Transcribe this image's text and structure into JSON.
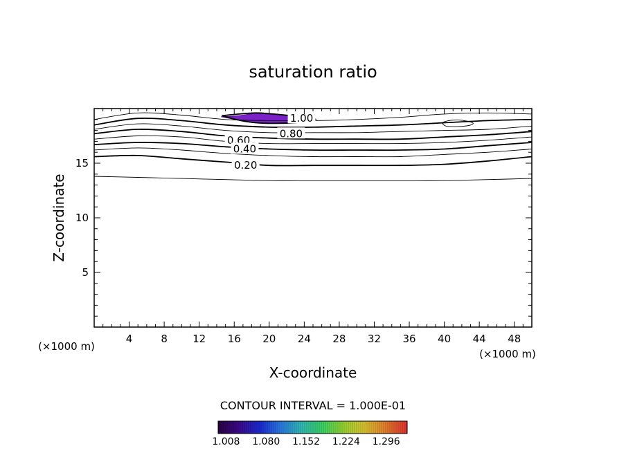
{
  "chart_data": {
    "type": "contour",
    "title": "saturation ratio",
    "xlabel": "X-coordinate",
    "ylabel": "Z-coordinate",
    "x_multiplier": "(×1000 m)",
    "y_multiplier": "(×1000 m)",
    "xlim": [
      0,
      50
    ],
    "ylim": [
      0,
      20
    ],
    "x_ticks": [
      "4",
      "8",
      "12",
      "16",
      "20",
      "24",
      "28",
      "32",
      "36",
      "40",
      "44",
      "48"
    ],
    "y_ticks": [
      "5",
      "10",
      "15"
    ],
    "contour_interval_text": "CONTOUR INTERVAL = 1.000E-01",
    "contour_labels": [
      {
        "text": "1.00",
        "value": 1.0,
        "x": 23.7,
        "y": 19.1
      },
      {
        "text": "0.80",
        "value": 0.8,
        "x": 22.5,
        "y": 17.7
      },
      {
        "text": "0.60",
        "value": 0.6,
        "x": 16.5,
        "y": 17.1
      },
      {
        "text": "0.40",
        "value": 0.4,
        "x": 17.2,
        "y": 16.3
      },
      {
        "text": "0.20",
        "value": 0.2,
        "x": 17.3,
        "y": 14.8
      }
    ],
    "contour_lines": [
      {
        "value": 0.1,
        "points": [
          [
            0,
            13.8
          ],
          [
            5,
            13.7
          ],
          [
            10,
            13.6
          ],
          [
            15,
            13.5
          ],
          [
            20,
            13.4
          ],
          [
            25,
            13.4
          ],
          [
            30,
            13.4
          ],
          [
            35,
            13.4
          ],
          [
            40,
            13.4
          ],
          [
            45,
            13.5
          ],
          [
            50,
            13.6
          ]
        ]
      },
      {
        "value": 0.2,
        "points": [
          [
            0,
            15.6
          ],
          [
            5,
            15.7
          ],
          [
            10,
            15.4
          ],
          [
            15,
            15.1
          ],
          [
            20,
            14.8
          ],
          [
            25,
            14.8
          ],
          [
            30,
            14.8
          ],
          [
            35,
            14.8
          ],
          [
            40,
            14.9
          ],
          [
            45,
            15.2
          ],
          [
            50,
            15.6
          ]
        ]
      },
      {
        "value": 0.3,
        "points": [
          [
            0,
            16.2
          ],
          [
            5,
            16.4
          ],
          [
            10,
            16.2
          ],
          [
            15,
            15.9
          ],
          [
            20,
            15.7
          ],
          [
            25,
            15.6
          ],
          [
            30,
            15.6
          ],
          [
            35,
            15.6
          ],
          [
            40,
            15.8
          ],
          [
            45,
            16.0
          ],
          [
            50,
            16.3
          ]
        ]
      },
      {
        "value": 0.4,
        "points": [
          [
            0,
            16.7
          ],
          [
            5,
            16.9
          ],
          [
            10,
            16.8
          ],
          [
            15,
            16.5
          ],
          [
            20,
            16.3
          ],
          [
            25,
            16.2
          ],
          [
            30,
            16.2
          ],
          [
            35,
            16.2
          ],
          [
            40,
            16.3
          ],
          [
            45,
            16.6
          ],
          [
            50,
            16.9
          ]
        ]
      },
      {
        "value": 0.5,
        "points": [
          [
            0,
            17.2
          ],
          [
            5,
            17.5
          ],
          [
            10,
            17.4
          ],
          [
            15,
            17.0
          ],
          [
            20,
            16.8
          ],
          [
            25,
            16.8
          ],
          [
            30,
            16.8
          ],
          [
            35,
            16.8
          ],
          [
            40,
            16.9
          ],
          [
            45,
            17.1
          ],
          [
            50,
            17.4
          ]
        ]
      },
      {
        "value": 0.6,
        "points": [
          [
            0,
            17.7
          ],
          [
            5,
            18.1
          ],
          [
            10,
            17.9
          ],
          [
            15,
            17.5
          ],
          [
            20,
            17.3
          ],
          [
            25,
            17.2
          ],
          [
            30,
            17.2
          ],
          [
            35,
            17.2
          ],
          [
            40,
            17.4
          ],
          [
            45,
            17.6
          ],
          [
            50,
            17.9
          ]
        ]
      },
      {
        "value": 0.7,
        "points": [
          [
            0,
            18.1
          ],
          [
            5,
            18.6
          ],
          [
            10,
            18.4
          ],
          [
            15,
            18.0
          ],
          [
            20,
            17.8
          ],
          [
            25,
            17.8
          ],
          [
            30,
            17.8
          ],
          [
            35,
            17.9
          ],
          [
            40,
            18.0
          ],
          [
            45,
            18.1
          ],
          [
            50,
            18.4
          ]
        ]
      },
      {
        "value": 0.8,
        "points": [
          [
            0,
            18.5
          ],
          [
            5,
            19.1
          ],
          [
            10,
            18.9
          ],
          [
            15,
            18.5
          ],
          [
            20,
            18.3
          ],
          [
            25,
            18.3
          ],
          [
            30,
            18.4
          ],
          [
            35,
            18.5
          ],
          [
            40,
            18.7
          ],
          [
            45,
            18.9
          ],
          [
            50,
            19.0
          ]
        ]
      },
      {
        "value": 0.9,
        "points": [
          [
            0,
            19.0
          ],
          [
            5,
            19.6
          ],
          [
            10,
            19.4
          ],
          [
            15,
            19.0
          ],
          [
            20,
            18.9
          ],
          [
            25,
            18.9
          ],
          [
            30,
            19.0
          ],
          [
            35,
            19.2
          ],
          [
            40,
            19.5
          ],
          [
            45,
            19.6
          ],
          [
            50,
            19.5
          ]
        ]
      }
    ],
    "closed_contours": [
      {
        "value": 0.9,
        "points": [
          [
            39.7,
            18.7
          ],
          [
            40.5,
            18.9
          ],
          [
            41.6,
            18.95
          ],
          [
            42.6,
            18.85
          ],
          [
            43.3,
            18.65
          ],
          [
            42.8,
            18.45
          ],
          [
            41.5,
            18.35
          ],
          [
            40.2,
            18.4
          ],
          [
            39.7,
            18.7
          ]
        ]
      },
      {
        "value": 1.0,
        "points": [
          [
            14.6,
            19.35
          ],
          [
            16.5,
            19.5
          ],
          [
            18.5,
            19.6
          ],
          [
            20.5,
            19.5
          ],
          [
            22.5,
            19.35
          ],
          [
            24.1,
            19.2
          ],
          [
            25.3,
            19.0
          ],
          [
            23.5,
            18.75
          ],
          [
            21,
            18.65
          ],
          [
            18.5,
            18.7
          ],
          [
            16.5,
            18.95
          ],
          [
            14.6,
            19.35
          ]
        ]
      }
    ],
    "filled_region": {
      "value_range": [
        1.008,
        1.05
      ],
      "color": "#7a22c8",
      "points": [
        [
          14.5,
          19.25
        ],
        [
          16.5,
          19.35
        ],
        [
          18.5,
          19.55
        ],
        [
          20.5,
          19.45
        ],
        [
          22.5,
          19.3
        ],
        [
          23.9,
          19.15
        ],
        [
          23.3,
          18.85
        ],
        [
          21.5,
          18.7
        ],
        [
          19.2,
          18.65
        ],
        [
          17.3,
          18.8
        ],
        [
          15.8,
          19.05
        ],
        [
          14.5,
          19.25
        ]
      ]
    },
    "colorbar": {
      "min": 1.0,
      "max": 1.34,
      "ticks": [
        "1.008",
        "1.080",
        "1.152",
        "1.224",
        "1.296"
      ],
      "tick_values": [
        1.008,
        1.08,
        1.152,
        1.224,
        1.296
      ],
      "colors": [
        "#2a0040",
        "#3a0a8a",
        "#1a2ad0",
        "#2a7ae0",
        "#30b8b0",
        "#3ad060",
        "#9ad030",
        "#d8c030",
        "#e07a2a",
        "#e03030"
      ]
    }
  }
}
